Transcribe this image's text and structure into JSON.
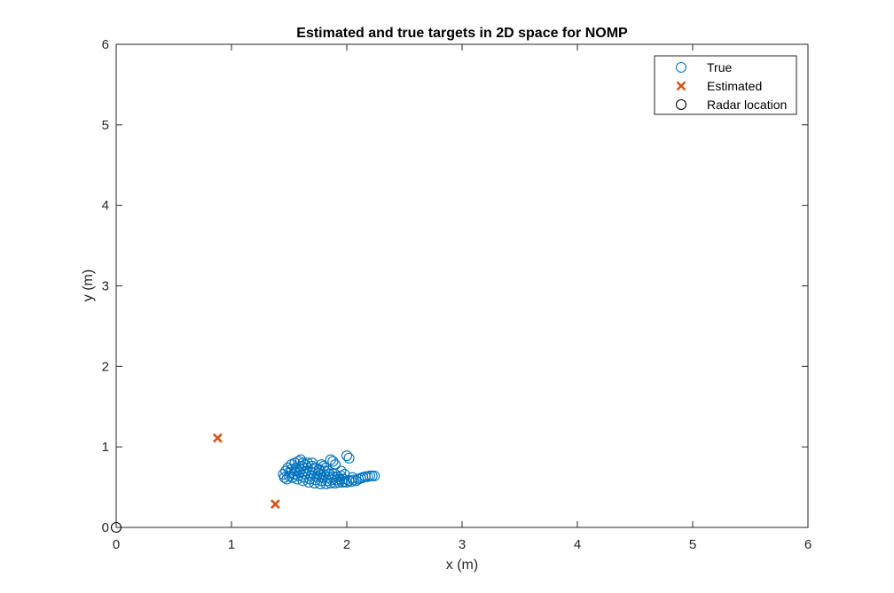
{
  "colors": {
    "true_marker": "#0072BD",
    "estimated_marker": "#D95319",
    "radar_marker": "#000000",
    "axes": "#262626",
    "background": "#FFFFFF"
  },
  "chart_data": {
    "type": "scatter",
    "title": "Estimated and true targets in 2D space for NOMP",
    "xlabel": "x (m)",
    "ylabel": "y (m)",
    "xlim": [
      0,
      6
    ],
    "ylim": [
      0,
      6
    ],
    "xticks": [
      "0",
      "1",
      "2",
      "3",
      "4",
      "5",
      "6"
    ],
    "yticks": [
      "0",
      "1",
      "2",
      "3",
      "4",
      "5",
      "6"
    ],
    "grid": false,
    "legend_position": "top-right",
    "series": [
      {
        "name": "True",
        "marker": "circle-open",
        "color": "#0072BD",
        "points": [
          [
            1.48,
            0.6
          ],
          [
            1.5,
            0.64
          ],
          [
            1.51,
            0.68
          ],
          [
            1.52,
            0.72
          ],
          [
            1.53,
            0.62
          ],
          [
            1.54,
            0.66
          ],
          [
            1.55,
            0.7
          ],
          [
            1.56,
            0.74
          ],
          [
            1.57,
            0.6
          ],
          [
            1.58,
            0.64
          ],
          [
            1.59,
            0.68
          ],
          [
            1.6,
            0.72
          ],
          [
            1.61,
            0.76
          ],
          [
            1.62,
            0.58
          ],
          [
            1.63,
            0.62
          ],
          [
            1.64,
            0.66
          ],
          [
            1.65,
            0.7
          ],
          [
            1.66,
            0.74
          ],
          [
            1.67,
            0.56
          ],
          [
            1.68,
            0.6
          ],
          [
            1.69,
            0.64
          ],
          [
            1.7,
            0.68
          ],
          [
            1.71,
            0.72
          ],
          [
            1.72,
            0.55
          ],
          [
            1.73,
            0.59
          ],
          [
            1.74,
            0.63
          ],
          [
            1.75,
            0.67
          ],
          [
            1.76,
            0.71
          ],
          [
            1.77,
            0.54
          ],
          [
            1.78,
            0.58
          ],
          [
            1.79,
            0.62
          ],
          [
            1.8,
            0.66
          ],
          [
            1.81,
            0.7
          ],
          [
            1.82,
            0.54
          ],
          [
            1.83,
            0.58
          ],
          [
            1.84,
            0.62
          ],
          [
            1.85,
            0.66
          ],
          [
            1.86,
            0.55
          ],
          [
            1.87,
            0.59
          ],
          [
            1.88,
            0.63
          ],
          [
            1.89,
            0.67
          ],
          [
            1.9,
            0.55
          ],
          [
            1.91,
            0.59
          ],
          [
            1.92,
            0.63
          ],
          [
            1.93,
            0.56
          ],
          [
            1.94,
            0.6
          ],
          [
            1.95,
            0.64
          ],
          [
            1.96,
            0.56
          ],
          [
            1.97,
            0.6
          ],
          [
            1.98,
            0.57
          ],
          [
            2.0,
            0.56
          ],
          [
            2.02,
            0.58
          ],
          [
            2.04,
            0.57
          ],
          [
            2.06,
            0.59
          ],
          [
            2.08,
            0.58
          ],
          [
            2.1,
            0.6
          ],
          [
            2.12,
            0.61
          ],
          [
            2.14,
            0.62
          ],
          [
            2.16,
            0.63
          ],
          [
            2.18,
            0.63
          ],
          [
            2.2,
            0.64
          ],
          [
            2.22,
            0.64
          ],
          [
            2.24,
            0.64
          ],
          [
            1.52,
            0.78
          ],
          [
            1.55,
            0.8
          ],
          [
            1.58,
            0.82
          ],
          [
            1.6,
            0.84
          ],
          [
            1.62,
            0.8
          ],
          [
            1.64,
            0.78
          ],
          [
            1.66,
            0.8
          ],
          [
            1.7,
            0.76
          ],
          [
            1.73,
            0.74
          ],
          [
            1.76,
            0.72
          ],
          [
            1.78,
            0.78
          ],
          [
            1.8,
            0.76
          ],
          [
            1.82,
            0.74
          ],
          [
            1.86,
            0.84
          ],
          [
            1.88,
            0.82
          ],
          [
            1.9,
            0.78
          ],
          [
            2.0,
            0.89
          ],
          [
            2.02,
            0.86
          ],
          [
            1.45,
            0.66
          ],
          [
            1.47,
            0.7
          ],
          [
            1.49,
            0.74
          ],
          [
            1.46,
            0.62
          ],
          [
            1.95,
            0.7
          ],
          [
            1.98,
            0.66
          ],
          [
            2.05,
            0.62
          ],
          [
            1.84,
            0.7
          ],
          [
            1.7,
            0.8
          ]
        ]
      },
      {
        "name": "Estimated",
        "marker": "x",
        "color": "#D95319",
        "points": [
          [
            0.88,
            1.11
          ],
          [
            1.38,
            0.29
          ]
        ]
      },
      {
        "name": "Radar location",
        "marker": "circle-open",
        "color": "#000000",
        "points": [
          [
            0,
            0
          ]
        ]
      }
    ]
  }
}
